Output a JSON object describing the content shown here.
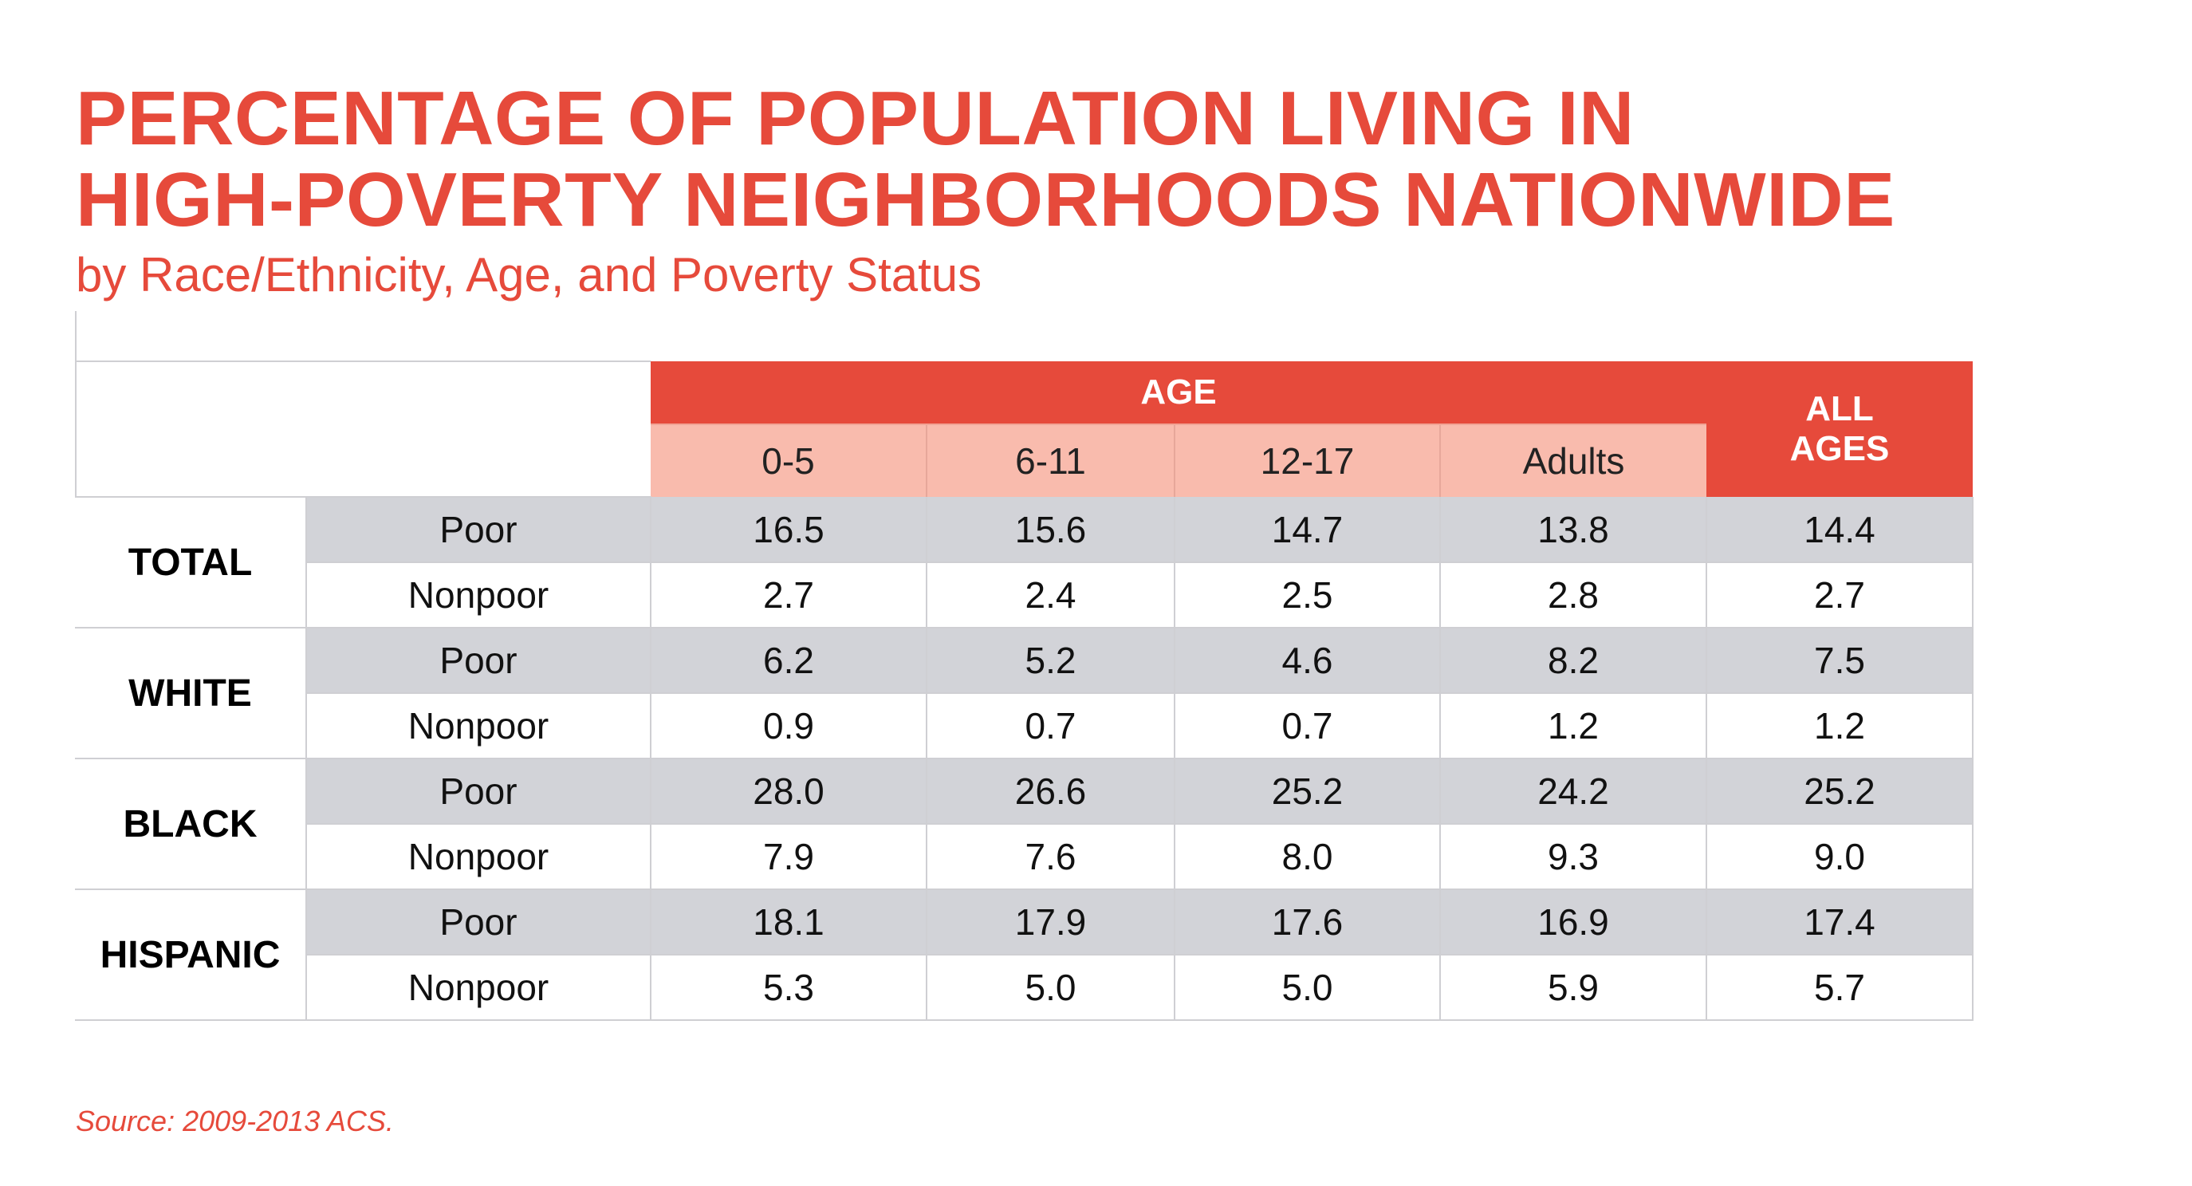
{
  "title_line1": "PERCENTAGE OF POPULATION LIVING IN",
  "title_line2": "HIGH-POVERTY NEIGHBORHOODS NATIONWIDE",
  "subtitle": "by Race/Ethnicity, Age, and Poverty Status",
  "source": "Source: 2009-2013 ACS.",
  "colors": {
    "accent": "#e64a3b",
    "subheader": "#f9bbad",
    "stripe": "#d2d3d8",
    "rule": "#cfcfd3"
  },
  "chart_data": {
    "type": "table",
    "group_header": "AGE",
    "total_header": [
      "ALL",
      "AGES"
    ],
    "columns": [
      "0-5",
      "6-11",
      "12-17",
      "Adults"
    ],
    "groups": [
      {
        "name": "TOTAL",
        "rows": [
          {
            "status": "Poor",
            "values": [
              "16.5",
              "15.6",
              "14.7",
              "13.8"
            ],
            "all_ages": "14.4"
          },
          {
            "status": "Nonpoor",
            "values": [
              "2.7",
              "2.4",
              "2.5",
              "2.8"
            ],
            "all_ages": "2.7"
          }
        ]
      },
      {
        "name": "WHITE",
        "rows": [
          {
            "status": "Poor",
            "values": [
              "6.2",
              "5.2",
              "4.6",
              "8.2"
            ],
            "all_ages": "7.5"
          },
          {
            "status": "Nonpoor",
            "values": [
              "0.9",
              "0.7",
              "0.7",
              "1.2"
            ],
            "all_ages": "1.2"
          }
        ]
      },
      {
        "name": "BLACK",
        "rows": [
          {
            "status": "Poor",
            "values": [
              "28.0",
              "26.6",
              "25.2",
              "24.2"
            ],
            "all_ages": "25.2"
          },
          {
            "status": "Nonpoor",
            "values": [
              "7.9",
              "7.6",
              "8.0",
              "9.3"
            ],
            "all_ages": "9.0"
          }
        ]
      },
      {
        "name": "HISPANIC",
        "rows": [
          {
            "status": "Poor",
            "values": [
              "18.1",
              "17.9",
              "17.6",
              "16.9"
            ],
            "all_ages": "17.4"
          },
          {
            "status": "Nonpoor",
            "values": [
              "5.3",
              "5.0",
              "5.0",
              "5.9"
            ],
            "all_ages": "5.7"
          }
        ]
      }
    ]
  }
}
